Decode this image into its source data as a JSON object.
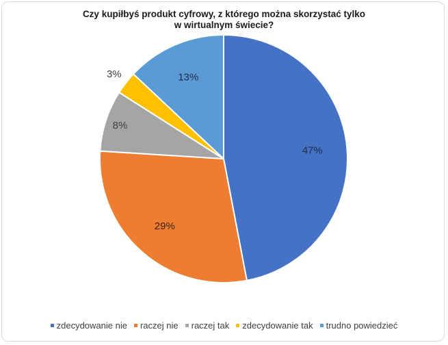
{
  "chart_data": {
    "type": "pie",
    "title": "Czy kupiłbyś produkt cyfrowy, z którego można skorzystać tylko w wirtualnym świecie?",
    "title_lines": [
      "Czy kupiłbyś produkt cyfrowy, z którego można skorzystać tylko",
      "w wirtualnym świecie?"
    ],
    "categories": [
      "zdecydowanie nie",
      "raczej nie",
      "raczej tak",
      "zdecydowanie tak",
      "trudno powiedzieć"
    ],
    "values": [
      47,
      29,
      8,
      3,
      13
    ],
    "labels": [
      "47%",
      "29%",
      "8%",
      "3%",
      "13%"
    ],
    "colors": [
      "#4472c4",
      "#ed7d31",
      "#a5a5a5",
      "#ffc000",
      "#5b9bd5"
    ],
    "start_angle": "12 o'clock, clockwise",
    "legend_position": "bottom"
  }
}
